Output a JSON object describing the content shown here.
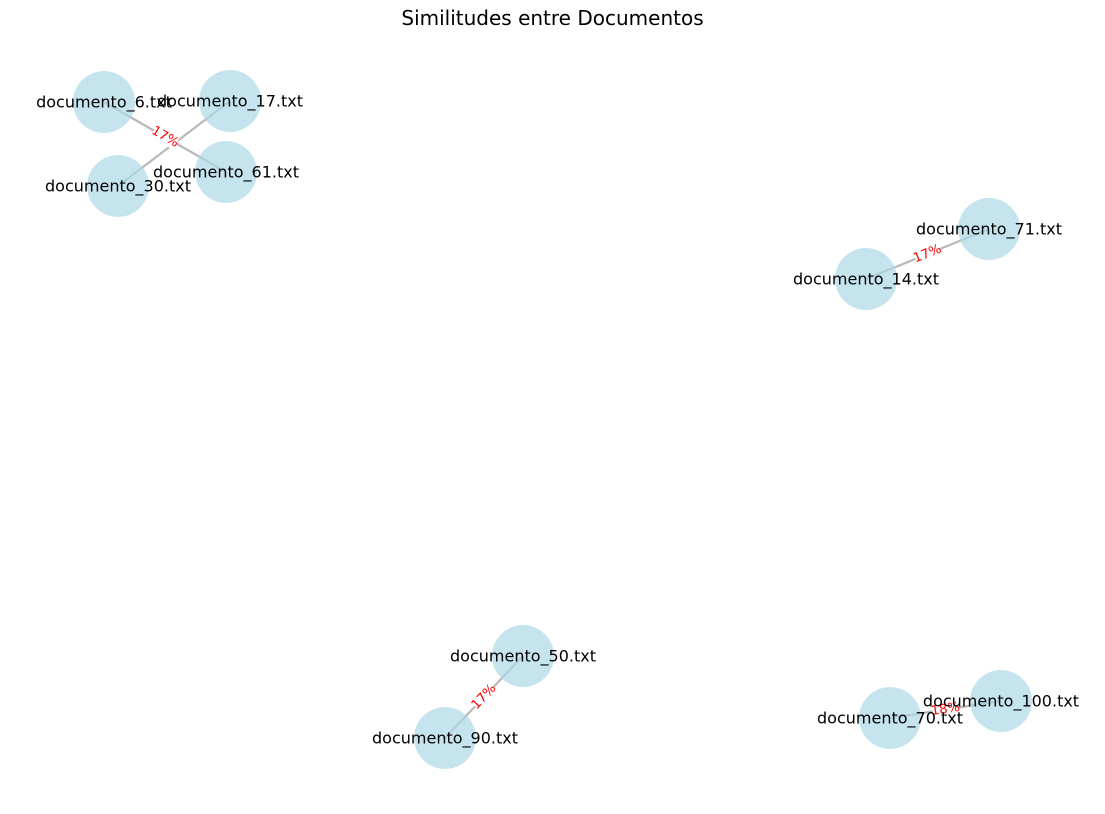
{
  "title": "Similitudes entre Documentos",
  "colors": {
    "node": "#add8e6",
    "edge": "#b8b8b8",
    "edge_label": "#ff0000"
  },
  "nodes": [
    {
      "id": "n6",
      "label": "documento_6.txt"
    },
    {
      "id": "n17",
      "label": "documento_17.txt"
    },
    {
      "id": "n30",
      "label": "documento_30.txt"
    },
    {
      "id": "n61",
      "label": "documento_61.txt"
    },
    {
      "id": "n71",
      "label": "documento_71.txt"
    },
    {
      "id": "n14",
      "label": "documento_14.txt"
    },
    {
      "id": "n50",
      "label": "documento_50.txt"
    },
    {
      "id": "n90",
      "label": "documento_90.txt"
    },
    {
      "id": "n100",
      "label": "documento_100.txt"
    },
    {
      "id": "n70",
      "label": "documento_70.txt"
    }
  ],
  "edges": [
    {
      "source": "n6",
      "target": "n61",
      "label": "17%"
    },
    {
      "source": "n17",
      "target": "n30",
      "label": ""
    },
    {
      "source": "n14",
      "target": "n71",
      "label": "17%"
    },
    {
      "source": "n90",
      "target": "n50",
      "label": "17%"
    },
    {
      "source": "n70",
      "target": "n100",
      "label": "18%"
    }
  ]
}
